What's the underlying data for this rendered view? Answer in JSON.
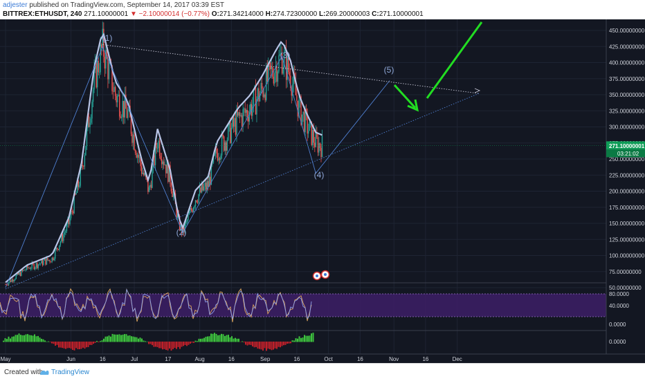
{
  "header": {
    "author": "adjester",
    "published": "published on TradingView.com, September 14, 2017 03:39 EST",
    "symbol": "BITTREX:ETHUSDT, 240",
    "last": "271.10000001",
    "change": "▼ −2.10000014 (−0.77%)",
    "o_label": "O:",
    "o_value": "271.34214000",
    "h_label": "H:",
    "h_value": "274.72300000",
    "l_label": "L:",
    "l_value": "269.20000003",
    "c_label": "C:",
    "c_value": "271.10000001"
  },
  "price_axis": {
    "ticks": [
      "450.00000000",
      "425.00000000",
      "400.00000000",
      "375.00000000",
      "350.00000000",
      "325.00000000",
      "300.00000000",
      "275.00000000",
      "250.00000000",
      "225.00000000",
      "200.00000000",
      "175.00000000",
      "150.00000000",
      "125.00000000",
      "100.00000000",
      "75.00000000",
      "50.00000000"
    ],
    "current_price": "271.10000001",
    "countdown": "03:21:02"
  },
  "rsi_axis": {
    "ticks": [
      "80.0000",
      "40.0000",
      "0.0000"
    ]
  },
  "momentum_axis": {
    "ticks": [
      "0.0000"
    ]
  },
  "time_axis": {
    "ticks": [
      "May",
      "Jun",
      "16",
      "Jul",
      "17",
      "Aug",
      "16",
      "Sep",
      "16",
      "Oct",
      "16",
      "Nov",
      "16",
      "Dec"
    ]
  },
  "waves": [
    "(1)",
    "(2)",
    "(3)",
    "(4)",
    "(5)"
  ],
  "colors": {
    "background": "#131722",
    "accent": "#3b7bd6",
    "up": "#26a69a",
    "down": "#ef5350",
    "arrow": "#22dd22",
    "price_line": "#b8c4e6",
    "current_price_bg": "#0f9d58"
  },
  "footer": {
    "created": "Created with",
    "brand": "TradingView"
  }
}
